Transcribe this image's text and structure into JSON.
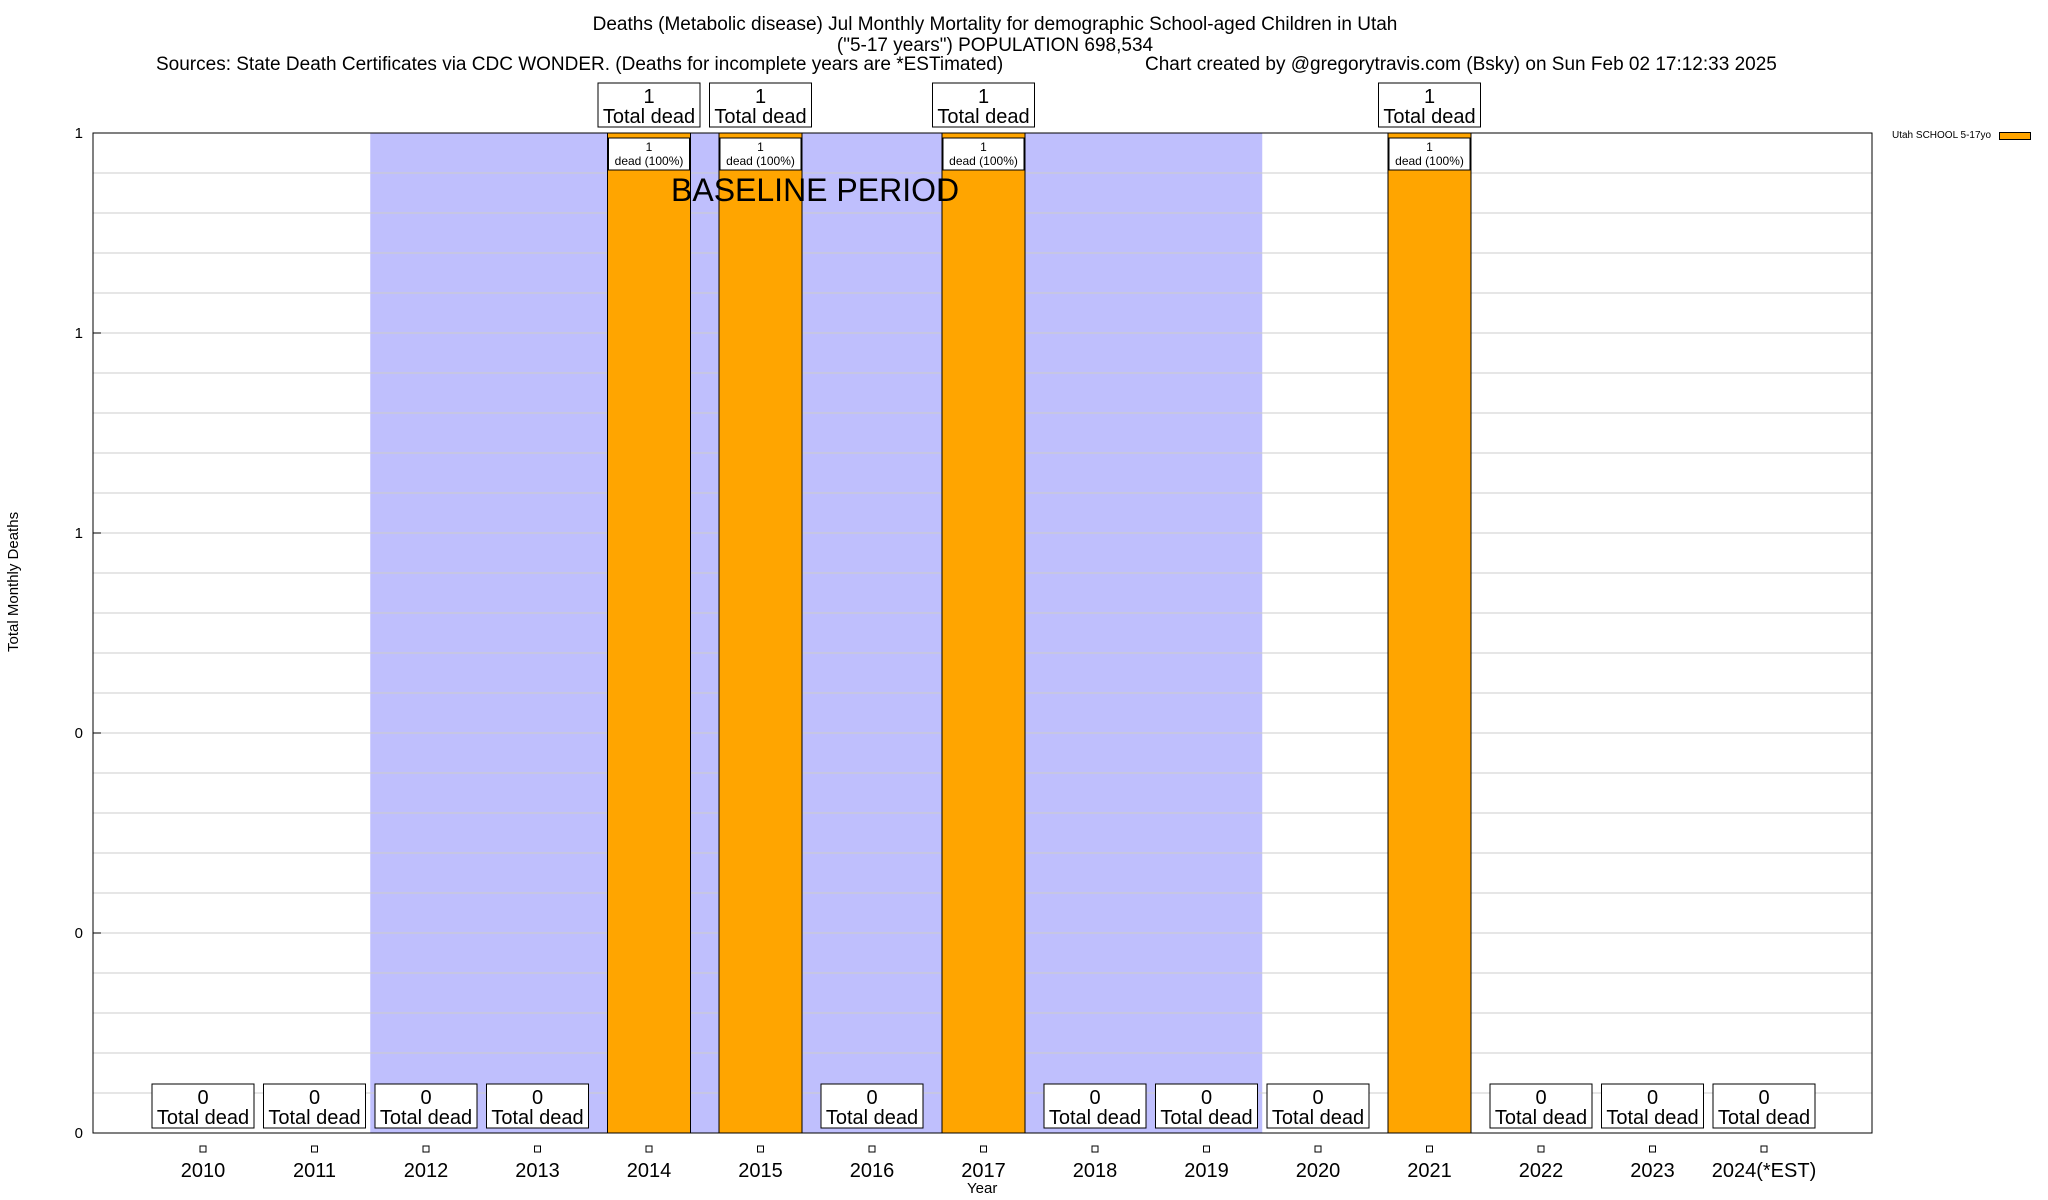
{
  "header": {
    "title_line1": "Deaths (Metabolic disease) Jul Monthly Mortality for demographic School-aged Children in Utah",
    "title_line2": "(\"5-17 years\") POPULATION 698,534",
    "sources": "Sources: State Death Certificates via CDC WONDER. (Deaths for incomplete years are *ESTimated)",
    "credit": "Chart created by @gregorytravis.com (Bsky) on Sun Feb 02 17:12:33 2025"
  },
  "colors": {
    "bar": "#ffa500",
    "baseline_shade": "#bfbffd",
    "grid": "#cccccc"
  },
  "chart_data": {
    "type": "bar",
    "xlabel": "Year",
    "ylabel": "Total Monthly Deaths",
    "ylim": [
      0,
      1
    ],
    "ytick_labels": [
      "0",
      "0",
      "0",
      "1",
      "1",
      "1"
    ],
    "categories": [
      "2010",
      "2011",
      "2012",
      "2013",
      "2014",
      "2015",
      "2016",
      "2017",
      "2018",
      "2019",
      "2020",
      "2021",
      "2022",
      "2023",
      "2024(*EST)"
    ],
    "series": [
      {
        "name": "Utah SCHOOL 5-17yo",
        "values": [
          0,
          0,
          0,
          0,
          1,
          1,
          0,
          1,
          0,
          0,
          0,
          1,
          0,
          0,
          0
        ]
      }
    ],
    "bar_labels": [
      {
        "count": "0",
        "text": "Total dead"
      },
      {
        "count": "0",
        "text": "Total dead"
      },
      {
        "count": "0",
        "text": "Total dead"
      },
      {
        "count": "0",
        "text": "Total dead"
      },
      {
        "count": "1",
        "text": "Total dead"
      },
      {
        "count": "1",
        "text": "Total dead"
      },
      {
        "count": "0",
        "text": "Total dead"
      },
      {
        "count": "1",
        "text": "Total dead"
      },
      {
        "count": "0",
        "text": "Total dead"
      },
      {
        "count": "0",
        "text": "Total dead"
      },
      {
        "count": "0",
        "text": "Total dead"
      },
      {
        "count": "1",
        "text": "Total dead"
      },
      {
        "count": "0",
        "text": "Total dead"
      },
      {
        "count": "0",
        "text": "Total dead"
      },
      {
        "count": "0",
        "text": "Total dead"
      }
    ],
    "inner_labels": [
      {
        "category": "2014",
        "count": "1",
        "text": "dead (100%)"
      },
      {
        "category": "2015",
        "count": "1",
        "text": "dead (100%)"
      },
      {
        "category": "2017",
        "count": "1",
        "text": "dead (100%)"
      },
      {
        "category": "2021",
        "count": "1",
        "text": "dead (100%)"
      }
    ],
    "baseline_period": {
      "label": "BASELINE PERIOD",
      "from": "2012",
      "to": "2019"
    },
    "legend_position": "top-right",
    "grid": true
  }
}
